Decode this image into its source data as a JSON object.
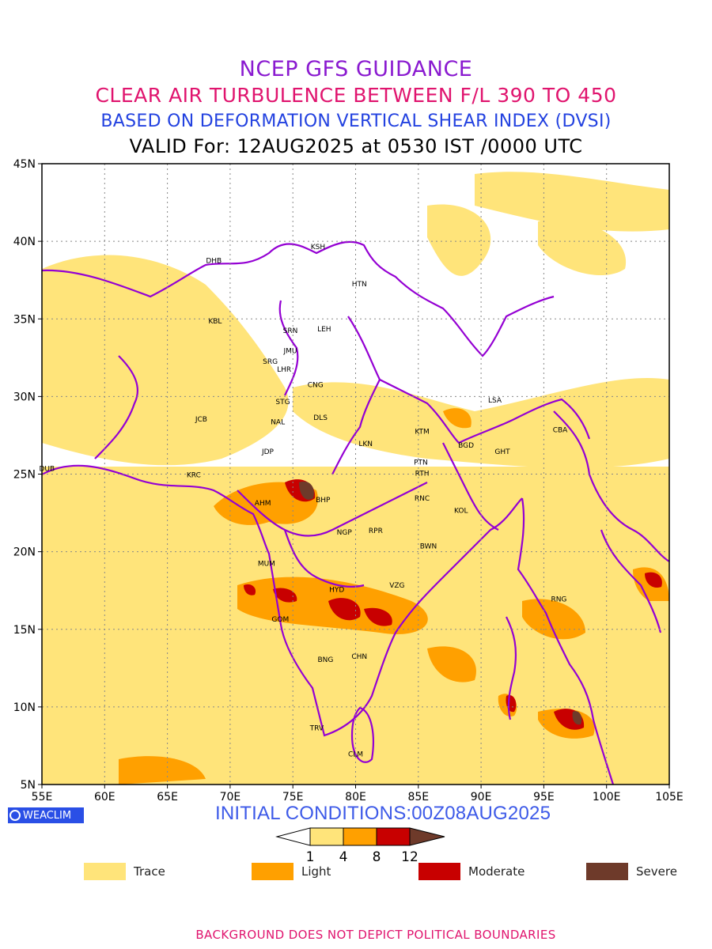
{
  "titles": {
    "line1": "NCEP GFS GUIDANCE",
    "line2": "CLEAR AIR TURBULENCE BETWEEN F/L 390 TO 450",
    "line3": "BASED ON DEFORMATION VERTICAL SHEAR INDEX (DVSI)",
    "line4": "VALID For: 12AUG2025 at 0530 IST /0000 UTC"
  },
  "map": {
    "lon_range": [
      55,
      105
    ],
    "lat_range": [
      5,
      45
    ],
    "lon_ticks": [
      "55E",
      "60E",
      "65E",
      "70E",
      "75E",
      "80E",
      "85E",
      "90E",
      "95E",
      "100E",
      "105E"
    ],
    "lat_ticks": [
      "5N",
      "10N",
      "15N",
      "20N",
      "25N",
      "30N",
      "35N",
      "40N",
      "45N"
    ],
    "grid": true,
    "stations": [
      {
        "code": "KSH",
        "lon": 77.0,
        "lat": 39.5
      },
      {
        "code": "DHB",
        "lon": 68.7,
        "lat": 38.6
      },
      {
        "code": "HTN",
        "lon": 80.3,
        "lat": 37.1
      },
      {
        "code": "KBL",
        "lon": 68.8,
        "lat": 34.7
      },
      {
        "code": "SRN",
        "lon": 74.8,
        "lat": 34.1
      },
      {
        "code": "LEH",
        "lon": 77.5,
        "lat": 34.2
      },
      {
        "code": "JMU",
        "lon": 74.8,
        "lat": 32.8
      },
      {
        "code": "SRG",
        "lon": 73.2,
        "lat": 32.1
      },
      {
        "code": "LHR",
        "lon": 74.3,
        "lat": 31.6
      },
      {
        "code": "CNG",
        "lon": 76.8,
        "lat": 30.6
      },
      {
        "code": "STG",
        "lon": 74.2,
        "lat": 29.5
      },
      {
        "code": "LSA",
        "lon": 91.1,
        "lat": 29.6
      },
      {
        "code": "JCB",
        "lon": 67.7,
        "lat": 28.4
      },
      {
        "code": "NAL",
        "lon": 73.8,
        "lat": 28.2
      },
      {
        "code": "DLS",
        "lon": 77.2,
        "lat": 28.5
      },
      {
        "code": "KTM",
        "lon": 85.3,
        "lat": 27.6
      },
      {
        "code": "CBA",
        "lon": 96.3,
        "lat": 27.7
      },
      {
        "code": "BGD",
        "lon": 88.8,
        "lat": 26.7
      },
      {
        "code": "GHT",
        "lon": 91.7,
        "lat": 26.3
      },
      {
        "code": "LKN",
        "lon": 80.8,
        "lat": 26.8
      },
      {
        "code": "JDP",
        "lon": 73.0,
        "lat": 26.3
      },
      {
        "code": "DUB",
        "lon": 55.4,
        "lat": 25.2
      },
      {
        "code": "PTN",
        "lon": 85.2,
        "lat": 25.6
      },
      {
        "code": "KRC",
        "lon": 67.1,
        "lat": 24.8
      },
      {
        "code": "RTH",
        "lon": 85.3,
        "lat": 24.9
      },
      {
        "code": "BHP",
        "lon": 77.4,
        "lat": 23.2
      },
      {
        "code": "AHM",
        "lon": 72.6,
        "lat": 23.0
      },
      {
        "code": "RNC",
        "lon": 85.3,
        "lat": 23.3
      },
      {
        "code": "KOL",
        "lon": 88.4,
        "lat": 22.5
      },
      {
        "code": "NGP",
        "lon": 79.1,
        "lat": 21.1
      },
      {
        "code": "RPR",
        "lon": 81.6,
        "lat": 21.2
      },
      {
        "code": "BWN",
        "lon": 85.8,
        "lat": 20.2
      },
      {
        "code": "MUM",
        "lon": 72.9,
        "lat": 19.1
      },
      {
        "code": "HYD",
        "lon": 78.5,
        "lat": 17.4
      },
      {
        "code": "VZG",
        "lon": 83.3,
        "lat": 17.7
      },
      {
        "code": "RNG",
        "lon": 96.2,
        "lat": 16.8
      },
      {
        "code": "GOM",
        "lon": 74.0,
        "lat": 15.5
      },
      {
        "code": "CHN",
        "lon": 80.3,
        "lat": 13.1
      },
      {
        "code": "BNG",
        "lon": 77.6,
        "lat": 12.9
      },
      {
        "code": "TRV",
        "lon": 76.9,
        "lat": 8.5
      },
      {
        "code": "CLM",
        "lon": 80.0,
        "lat": 6.8
      }
    ]
  },
  "branding": "WEACLIM",
  "initial_conditions": "INITIAL CONDITIONS:00Z08AUG2025",
  "colorbar": {
    "ticks": [
      "1",
      "4",
      "8",
      "12"
    ],
    "colors": [
      "#ffe47a",
      "#ffa000",
      "#c80000",
      "#6e3a2a"
    ]
  },
  "legend": [
    {
      "label": "Trace",
      "color": "#ffe47a"
    },
    {
      "label": "Light",
      "color": "#ffa000"
    },
    {
      "label": "Moderate",
      "color": "#c80000"
    },
    {
      "label": "Severe",
      "color": "#6e3a2a"
    }
  ],
  "footer": "BACKGROUND DOES NOT DEPICT POLITICAL BOUNDARIES"
}
